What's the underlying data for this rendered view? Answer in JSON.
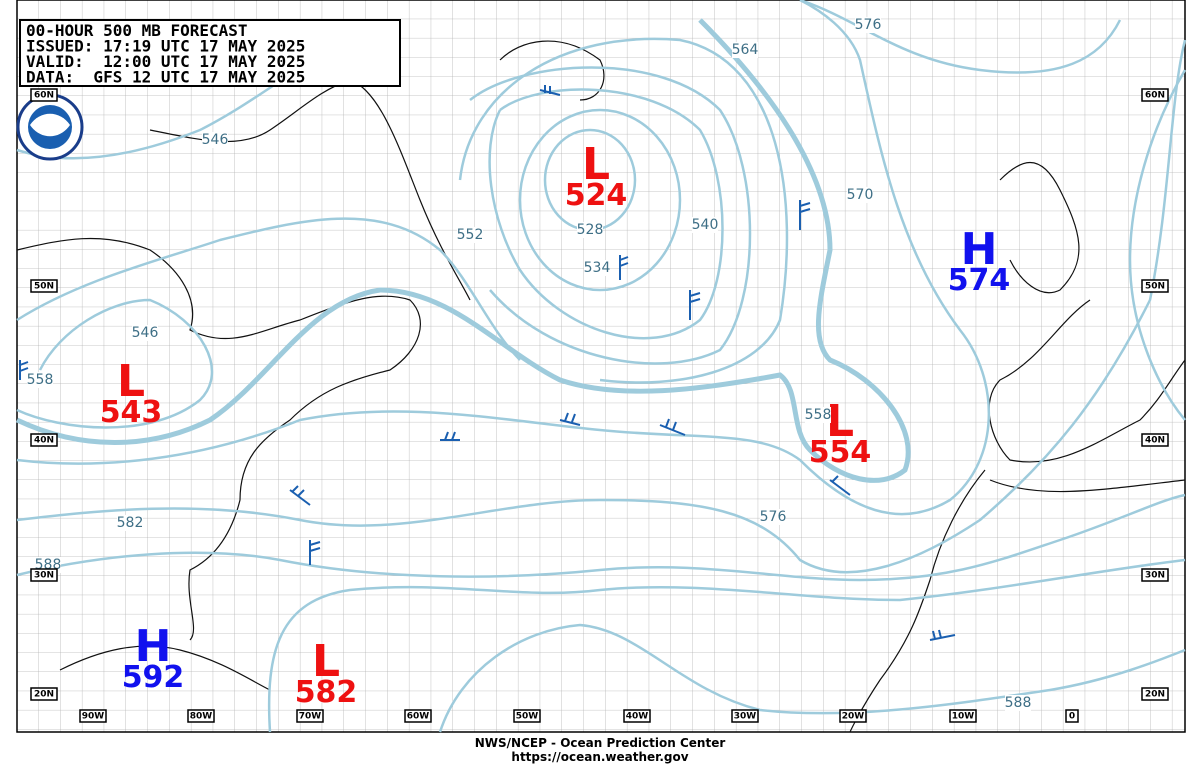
{
  "header": {
    "lines": [
      "00-HOUR 500 MB FORECAST",
      "ISSUED: 17:19 UTC 17 MAY 2025",
      "VALID:  12:00 UTC 17 MAY 2025",
      "DATA:  GFS 12 UTC 17 MAY 2025"
    ]
  },
  "centers": [
    {
      "letter": "L",
      "value": 524
    },
    {
      "letter": "H",
      "value": 574
    },
    {
      "letter": "L",
      "value": 543
    },
    {
      "letter": "L",
      "value": 554
    },
    {
      "letter": "H",
      "value": 592
    },
    {
      "letter": "L",
      "value": 582
    }
  ],
  "contour_labels": [
    546,
    552,
    564,
    576,
    570,
    540,
    528,
    534,
    546,
    558,
    558,
    576,
    582,
    588,
    588
  ],
  "latitude_labels": [
    "60N",
    "50N",
    "40N",
    "30N",
    "20N"
  ],
  "longitude_labels": [
    "90W",
    "80W",
    "70W",
    "60W",
    "50W",
    "40W",
    "30W",
    "20W",
    "10W",
    "0"
  ],
  "footer": {
    "lines": [
      "NWS/NCEP - Ocean Prediction Center",
      "https://ocean.weather.gov"
    ]
  }
}
